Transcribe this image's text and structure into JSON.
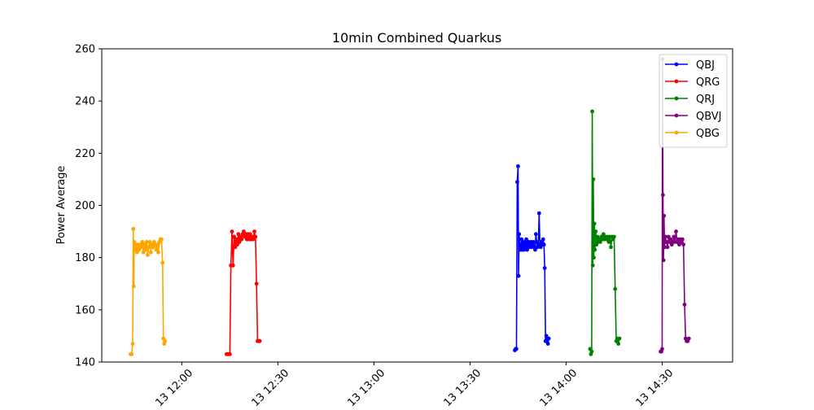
{
  "chart_data": {
    "type": "line",
    "title": "10min Combined Quarkus",
    "xlabel": "",
    "ylabel": "Power Average",
    "ylim": [
      140,
      260
    ],
    "xlim": [
      "2023-02-13 11:35",
      "2023-02-13 14:52"
    ],
    "yticks": [
      140,
      160,
      180,
      200,
      220,
      240,
      260
    ],
    "xticks": [
      "2023-02-13 12:00",
      "2023-02-13 12:30",
      "2023-02-13 13:00",
      "2023-02-13 13:30",
      "2023-02-13 14:00",
      "2023-02-13 14:30"
    ],
    "xtick_labels": [
      "13 12:00",
      "13 12:30",
      "13 13:00",
      "13 13:30",
      "13 14:00",
      "13 14:30"
    ],
    "grid": false,
    "legend": "top-right",
    "series": [
      {
        "name": "QBJ",
        "color": "#0000ff",
        "points": [
          [
            "2023-02-13 13:44:00",
            144.5
          ],
          [
            "2023-02-13 13:44:15",
            145
          ],
          [
            "2023-02-13 13:44:30",
            145
          ],
          [
            "2023-02-13 13:44:45",
            209
          ],
          [
            "2023-02-13 13:45:00",
            215
          ],
          [
            "2023-02-13 13:45:10",
            173
          ],
          [
            "2023-02-13 13:45:20",
            189
          ],
          [
            "2023-02-13 13:45:35",
            185
          ],
          [
            "2023-02-13 13:45:50",
            183
          ],
          [
            "2023-02-13 13:46:05",
            187
          ],
          [
            "2023-02-13 13:46:20",
            183
          ],
          [
            "2023-02-13 13:46:35",
            186
          ],
          [
            "2023-02-13 13:46:50",
            183
          ],
          [
            "2023-02-13 13:47:05",
            186
          ],
          [
            "2023-02-13 13:47:20",
            184
          ],
          [
            "2023-02-13 13:47:35",
            187
          ],
          [
            "2023-02-13 13:47:50",
            183
          ],
          [
            "2023-02-13 13:48:05",
            185
          ],
          [
            "2023-02-13 13:48:20",
            186
          ],
          [
            "2023-02-13 13:48:35",
            184
          ],
          [
            "2023-02-13 13:48:50",
            185
          ],
          [
            "2023-02-13 13:49:05",
            186
          ],
          [
            "2023-02-13 13:49:20",
            184
          ],
          [
            "2023-02-13 13:49:35",
            185
          ],
          [
            "2023-02-13 13:49:50",
            186
          ],
          [
            "2023-02-13 13:50:05",
            184
          ],
          [
            "2023-02-13 13:50:20",
            183
          ],
          [
            "2023-02-13 13:50:35",
            189
          ],
          [
            "2023-02-13 13:50:50",
            186
          ],
          [
            "2023-02-13 13:51:05",
            184
          ],
          [
            "2023-02-13 13:51:20",
            185
          ],
          [
            "2023-02-13 13:51:35",
            197
          ],
          [
            "2023-02-13 13:51:50",
            185
          ],
          [
            "2023-02-13 13:52:05",
            184
          ],
          [
            "2023-02-13 13:52:20",
            186
          ],
          [
            "2023-02-13 13:52:35",
            185
          ],
          [
            "2023-02-13 13:52:50",
            187
          ],
          [
            "2023-02-13 13:53:05",
            185
          ],
          [
            "2023-02-13 13:53:20",
            176
          ],
          [
            "2023-02-13 13:53:35",
            148
          ],
          [
            "2023-02-13 13:53:50",
            150
          ],
          [
            "2023-02-13 13:54:05",
            148
          ],
          [
            "2023-02-13 13:54:20",
            147
          ],
          [
            "2023-02-13 13:54:35",
            149
          ]
        ]
      },
      {
        "name": "QRG",
        "color": "#ff0000",
        "points": [
          [
            "2023-02-13 12:14:00",
            143
          ],
          [
            "2023-02-13 12:14:20",
            143
          ],
          [
            "2023-02-13 12:14:40",
            143
          ],
          [
            "2023-02-13 12:15:00",
            143
          ],
          [
            "2023-02-13 12:15:20",
            177
          ],
          [
            "2023-02-13 12:15:40",
            190
          ],
          [
            "2023-02-13 12:16:00",
            177
          ],
          [
            "2023-02-13 12:16:20",
            188
          ],
          [
            "2023-02-13 12:16:40",
            184
          ],
          [
            "2023-02-13 12:17:00",
            187
          ],
          [
            "2023-02-13 12:17:20",
            185
          ],
          [
            "2023-02-13 12:17:40",
            189
          ],
          [
            "2023-02-13 12:18:00",
            186
          ],
          [
            "2023-02-13 12:18:20",
            188
          ],
          [
            "2023-02-13 12:18:40",
            187
          ],
          [
            "2023-02-13 12:19:00",
            189
          ],
          [
            "2023-02-13 12:19:20",
            190
          ],
          [
            "2023-02-13 12:19:40",
            188
          ],
          [
            "2023-02-13 12:20:00",
            189
          ],
          [
            "2023-02-13 12:20:20",
            187
          ],
          [
            "2023-02-13 12:20:40",
            189
          ],
          [
            "2023-02-13 12:21:00",
            187
          ],
          [
            "2023-02-13 12:21:20",
            189
          ],
          [
            "2023-02-13 12:21:40",
            187
          ],
          [
            "2023-02-13 12:22:00",
            188
          ],
          [
            "2023-02-13 12:22:20",
            187
          ],
          [
            "2023-02-13 12:22:40",
            190
          ],
          [
            "2023-02-13 12:23:00",
            188
          ],
          [
            "2023-02-13 12:23:20",
            170
          ],
          [
            "2023-02-13 12:23:40",
            148
          ],
          [
            "2023-02-13 12:24:00",
            148
          ],
          [
            "2023-02-13 12:24:20",
            148
          ]
        ]
      },
      {
        "name": "QRJ",
        "color": "#008000",
        "points": [
          [
            "2023-02-13 14:07:30",
            145
          ],
          [
            "2023-02-13 14:07:45",
            143
          ],
          [
            "2023-02-13 14:08:00",
            144
          ],
          [
            "2023-02-13 14:08:10",
            236
          ],
          [
            "2023-02-13 14:08:20",
            177
          ],
          [
            "2023-02-13 14:08:30",
            210
          ],
          [
            "2023-02-13 14:08:40",
            180
          ],
          [
            "2023-02-13 14:08:50",
            193
          ],
          [
            "2023-02-13 14:09:00",
            183
          ],
          [
            "2023-02-13 14:09:15",
            190
          ],
          [
            "2023-02-13 14:09:30",
            185
          ],
          [
            "2023-02-13 14:09:45",
            188
          ],
          [
            "2023-02-13 14:10:00",
            186
          ],
          [
            "2023-02-13 14:10:20",
            187
          ],
          [
            "2023-02-13 14:10:40",
            186
          ],
          [
            "2023-02-13 14:11:00",
            188
          ],
          [
            "2023-02-13 14:11:20",
            187
          ],
          [
            "2023-02-13 14:11:40",
            189
          ],
          [
            "2023-02-13 14:12:00",
            187
          ],
          [
            "2023-02-13 14:12:20",
            188
          ],
          [
            "2023-02-13 14:12:40",
            187
          ],
          [
            "2023-02-13 14:13:00",
            188
          ],
          [
            "2023-02-13 14:13:20",
            186
          ],
          [
            "2023-02-13 14:13:40",
            188
          ],
          [
            "2023-02-13 14:14:00",
            184
          ],
          [
            "2023-02-13 14:14:20",
            188
          ],
          [
            "2023-02-13 14:14:40",
            187
          ],
          [
            "2023-02-13 14:15:00",
            188
          ],
          [
            "2023-02-13 14:15:20",
            168
          ],
          [
            "2023-02-13 14:15:40",
            148
          ],
          [
            "2023-02-13 14:16:00",
            149
          ],
          [
            "2023-02-13 14:16:20",
            147
          ],
          [
            "2023-02-13 14:16:40",
            149
          ]
        ]
      },
      {
        "name": "QBVJ",
        "color": "#800080",
        "points": [
          [
            "2023-02-13 14:29:30",
            144
          ],
          [
            "2023-02-13 14:29:45",
            144
          ],
          [
            "2023-02-13 14:30:00",
            145
          ],
          [
            "2023-02-13 14:30:05",
            256
          ],
          [
            "2023-02-13 14:30:15",
            204
          ],
          [
            "2023-02-13 14:30:25",
            179
          ],
          [
            "2023-02-13 14:30:35",
            196
          ],
          [
            "2023-02-13 14:30:45",
            184
          ],
          [
            "2023-02-13 14:31:00",
            188
          ],
          [
            "2023-02-13 14:31:20",
            186
          ],
          [
            "2023-02-13 14:31:40",
            184
          ],
          [
            "2023-02-13 14:32:00",
            188
          ],
          [
            "2023-02-13 14:32:20",
            186
          ],
          [
            "2023-02-13 14:32:40",
            187
          ],
          [
            "2023-02-13 14:33:00",
            185
          ],
          [
            "2023-02-13 14:33:20",
            186
          ],
          [
            "2023-02-13 14:33:40",
            188
          ],
          [
            "2023-02-13 14:34:00",
            186
          ],
          [
            "2023-02-13 14:34:20",
            190
          ],
          [
            "2023-02-13 14:34:40",
            186
          ],
          [
            "2023-02-13 14:35:00",
            187
          ],
          [
            "2023-02-13 14:35:20",
            185
          ],
          [
            "2023-02-13 14:35:40",
            187
          ],
          [
            "2023-02-13 14:36:00",
            186
          ],
          [
            "2023-02-13 14:36:20",
            187
          ],
          [
            "2023-02-13 14:36:40",
            185
          ],
          [
            "2023-02-13 14:37:00",
            162
          ],
          [
            "2023-02-13 14:37:20",
            149
          ],
          [
            "2023-02-13 14:37:40",
            148
          ],
          [
            "2023-02-13 14:38:00",
            148
          ],
          [
            "2023-02-13 14:38:20",
            149
          ]
        ]
      },
      {
        "name": "QBG",
        "color": "#ffa500",
        "points": [
          [
            "2023-02-13 11:44:00",
            143
          ],
          [
            "2023-02-13 11:44:20",
            143
          ],
          [
            "2023-02-13 11:44:40",
            147
          ],
          [
            "2023-02-13 11:44:50",
            191
          ],
          [
            "2023-02-13 11:45:00",
            169
          ],
          [
            "2023-02-13 11:45:10",
            186
          ],
          [
            "2023-02-13 11:45:25",
            183
          ],
          [
            "2023-02-13 11:45:40",
            185
          ],
          [
            "2023-02-13 11:46:00",
            182
          ],
          [
            "2023-02-13 11:46:20",
            185
          ],
          [
            "2023-02-13 11:46:40",
            183
          ],
          [
            "2023-02-13 11:47:00",
            185
          ],
          [
            "2023-02-13 11:47:20",
            184
          ],
          [
            "2023-02-13 11:47:40",
            186
          ],
          [
            "2023-02-13 11:48:00",
            182
          ],
          [
            "2023-02-13 11:48:20",
            185
          ],
          [
            "2023-02-13 11:48:40",
            183
          ],
          [
            "2023-02-13 11:49:00",
            186
          ],
          [
            "2023-02-13 11:49:20",
            181
          ],
          [
            "2023-02-13 11:49:40",
            184
          ],
          [
            "2023-02-13 11:50:00",
            186
          ],
          [
            "2023-02-13 11:50:20",
            182
          ],
          [
            "2023-02-13 11:50:40",
            185
          ],
          [
            "2023-02-13 11:51:00",
            184
          ],
          [
            "2023-02-13 11:51:20",
            186
          ],
          [
            "2023-02-13 11:51:40",
            185
          ],
          [
            "2023-02-13 11:52:00",
            183
          ],
          [
            "2023-02-13 11:52:20",
            185
          ],
          [
            "2023-02-13 11:52:40",
            182
          ],
          [
            "2023-02-13 11:53:00",
            186
          ],
          [
            "2023-02-13 11:53:20",
            187
          ],
          [
            "2023-02-13 11:53:40",
            187
          ],
          [
            "2023-02-13 11:54:00",
            178
          ],
          [
            "2023-02-13 11:54:15",
            149
          ],
          [
            "2023-02-13 11:54:30",
            147
          ],
          [
            "2023-02-13 11:54:45",
            148
          ]
        ]
      }
    ]
  }
}
